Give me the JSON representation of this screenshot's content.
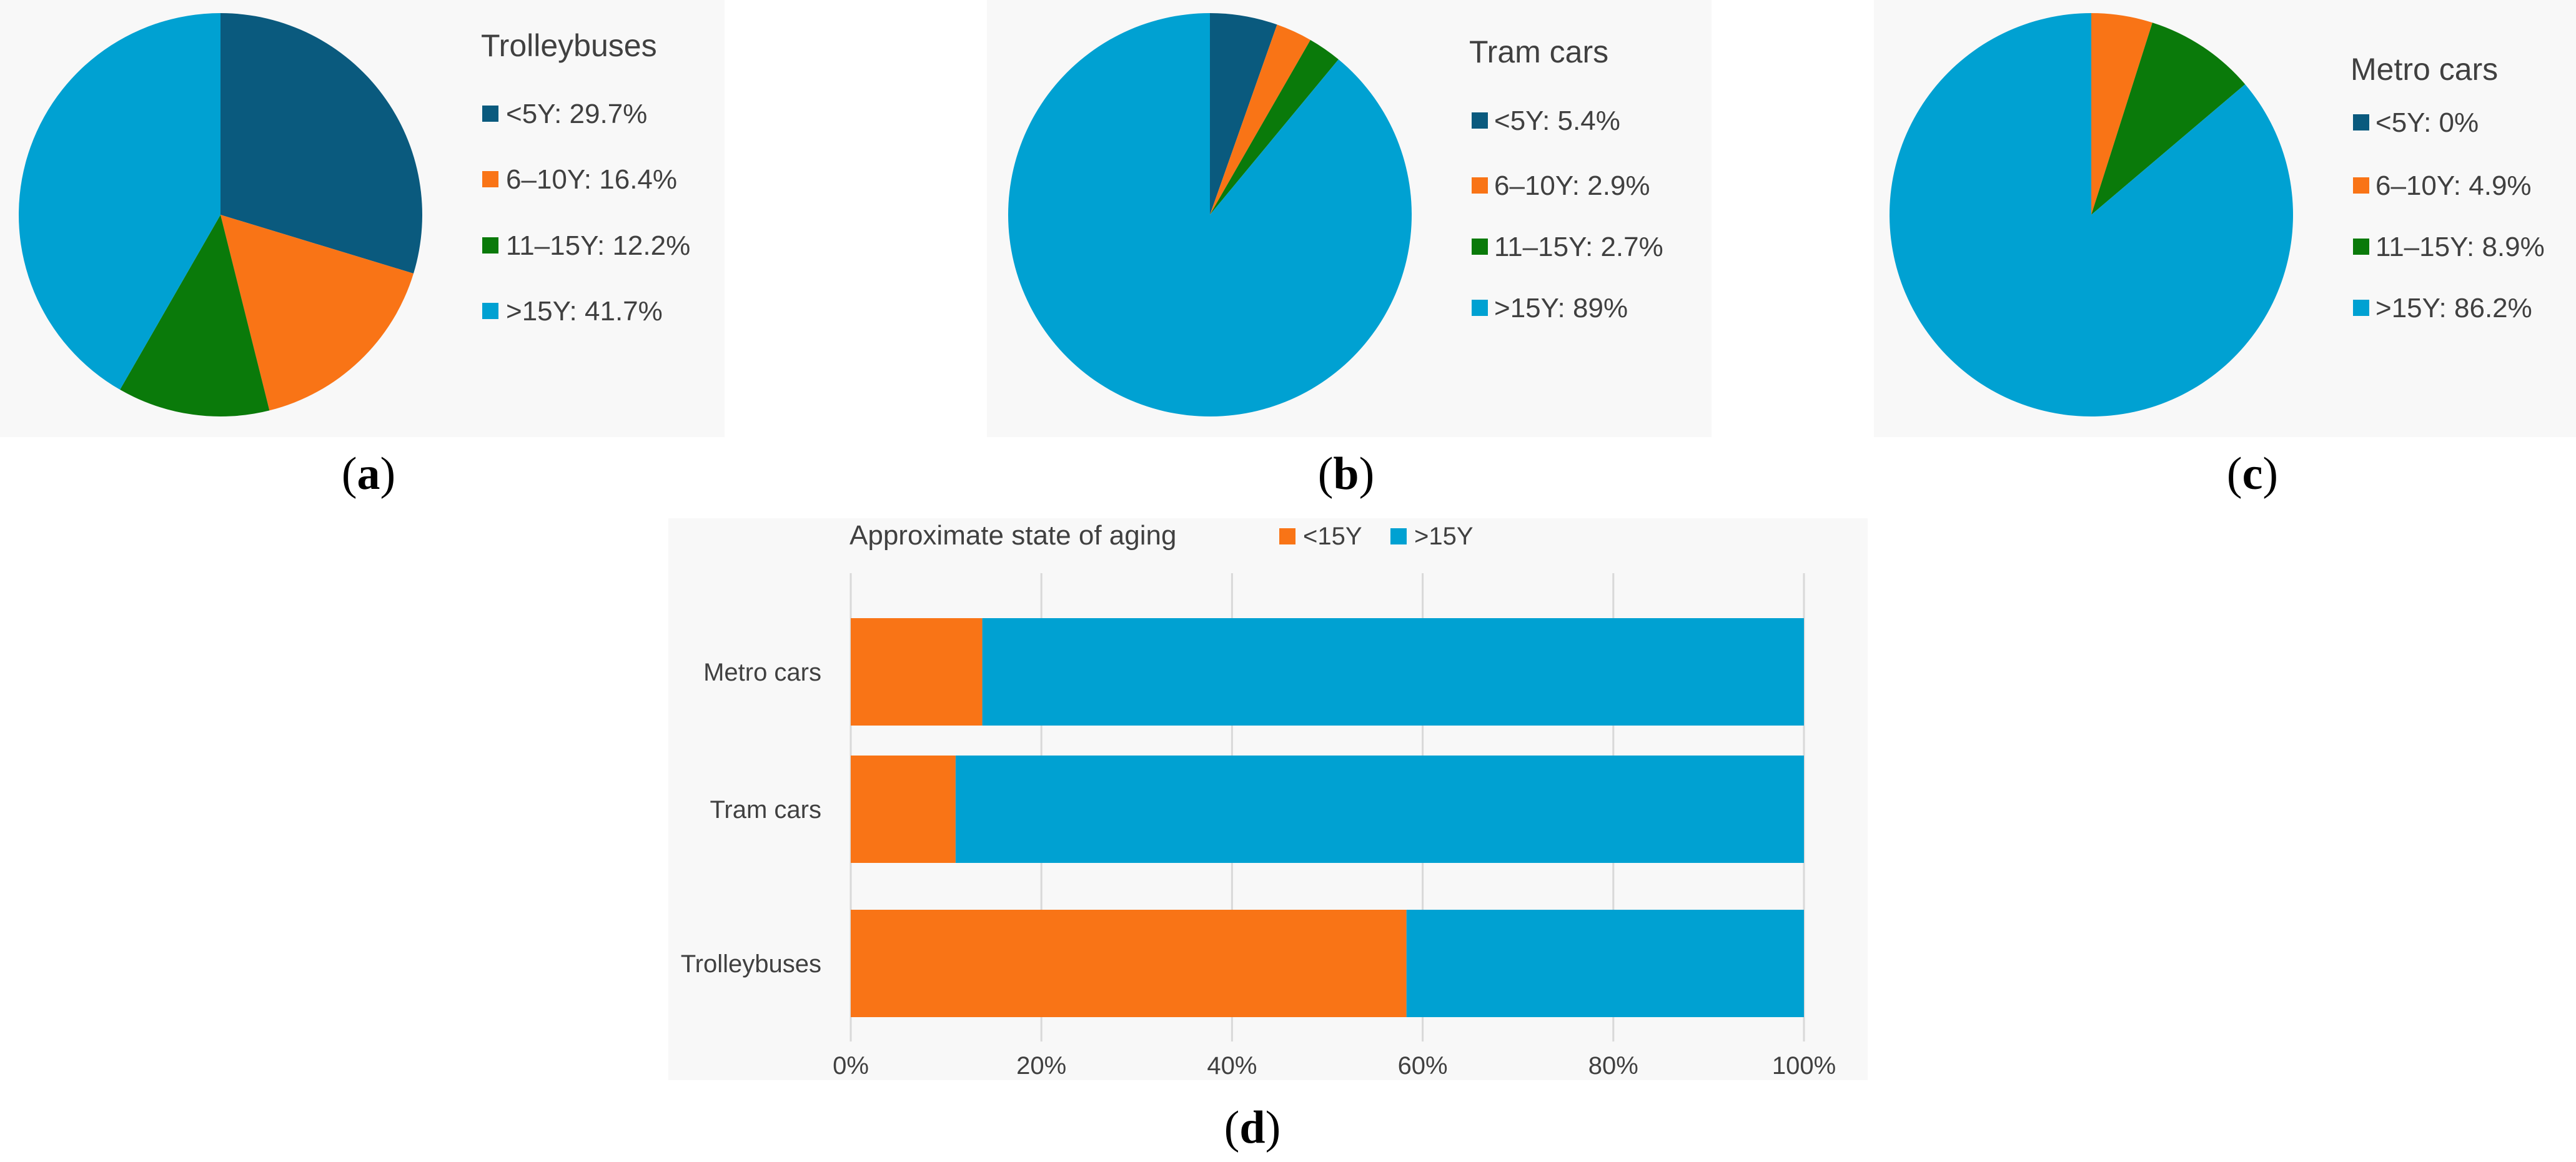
{
  "colors": {
    "lt5": "#0A5A7E",
    "y6_10": "#F97416",
    "y11_15": "#0A7A0A",
    "gt15": "#00A1D2",
    "lt15": "#F97416",
    "grid": "#D9D9D9",
    "panel_bg": "#F8F8F8"
  },
  "chart_data": [
    {
      "type": "pie",
      "panel": "(a)",
      "title": "Trolleybuses",
      "labels": [
        "<5Y",
        "6–10Y",
        "11–15Y",
        ">15Y"
      ],
      "values": [
        29.7,
        16.4,
        12.2,
        41.7
      ],
      "legend_texts": [
        "<5Y: 29.7%",
        "6–10Y: 16.4%",
        "11–15Y: 12.2%",
        ">15Y: 41.7%"
      ]
    },
    {
      "type": "pie",
      "panel": "(b)",
      "title": "Tram cars",
      "labels": [
        "<5Y",
        "6–10Y",
        "11–15Y",
        ">15Y"
      ],
      "values": [
        5.4,
        2.9,
        2.7,
        89
      ],
      "legend_texts": [
        "<5Y: 5.4%",
        "6–10Y: 2.9%",
        "11–15Y: 2.7%",
        ">15Y: 89%"
      ]
    },
    {
      "type": "pie",
      "panel": "(c)",
      "title": "Metro cars",
      "labels": [
        "<5Y",
        "6–10Y",
        "11–15Y",
        ">15Y"
      ],
      "values": [
        0,
        4.9,
        8.9,
        86.2
      ],
      "legend_texts": [
        "<5Y: 0%",
        "6–10Y: 4.9%",
        "11–15Y: 8.9%",
        ">15Y: 86.2%"
      ]
    },
    {
      "type": "bar",
      "orientation": "horizontal",
      "stacked": "percent",
      "panel": "(d)",
      "title": "Approximate state of aging",
      "categories": [
        "Metro cars",
        "Tram cars",
        "Trolleybuses"
      ],
      "series": [
        {
          "name": "<15Y",
          "values": [
            13.8,
            11.0,
            58.3
          ]
        },
        {
          "name": ">15Y",
          "values": [
            86.2,
            89.0,
            41.7
          ]
        }
      ],
      "legend_labels": [
        "<15Y",
        ">15Y"
      ],
      "xticks": [
        "0%",
        "20%",
        "40%",
        "60%",
        "80%",
        "100%"
      ],
      "xlim": [
        0,
        100
      ],
      "grid": true
    }
  ]
}
